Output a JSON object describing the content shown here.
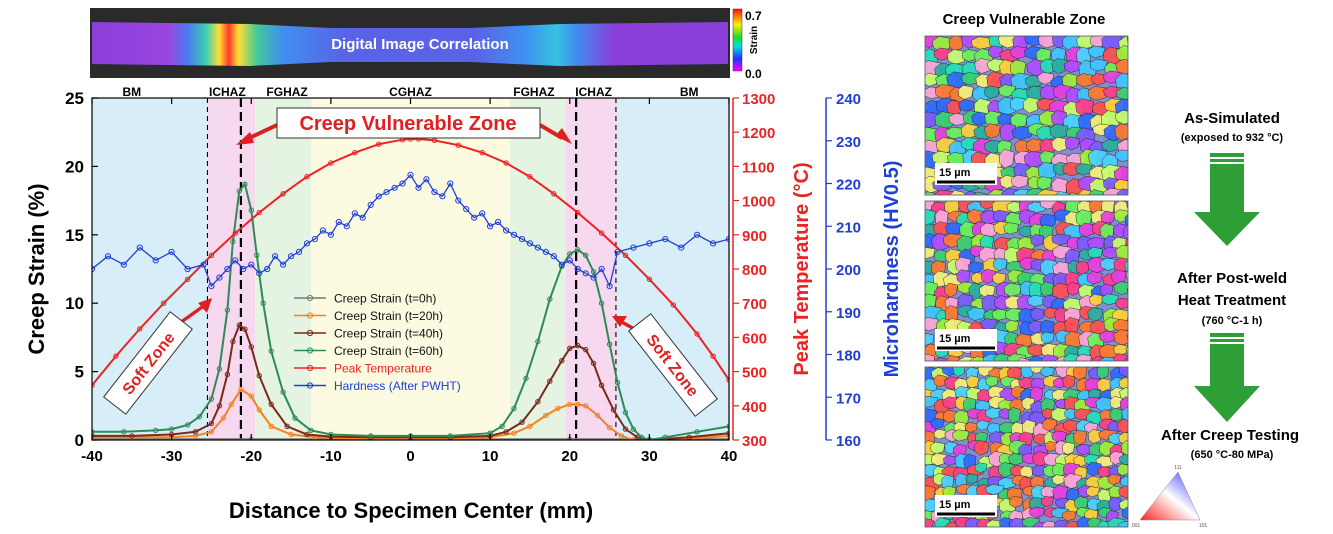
{
  "dic": {
    "label": "Digital Image Correlation",
    "colorbar_title": "Strain",
    "colorbar_max": "0.7",
    "colorbar_min": "0.0"
  },
  "zones": [
    {
      "name": "BM",
      "x": -35
    },
    {
      "name": "ICHAZ",
      "x": -23
    },
    {
      "name": "FGHAZ",
      "x": -15.5
    },
    {
      "name": "CGHAZ",
      "x": 0
    },
    {
      "name": "FGHAZ",
      "x": 15.5
    },
    {
      "name": "ICHAZ",
      "x": 23
    },
    {
      "name": "BM",
      "x": 35
    }
  ],
  "zone_bands": [
    {
      "x0": -40,
      "x1": -25.5,
      "color": "#d7eef8"
    },
    {
      "x0": -25.5,
      "x1": -19.5,
      "color": "#f6d9ef"
    },
    {
      "x0": -19.5,
      "x1": -12.5,
      "color": "#e4f3e2"
    },
    {
      "x0": -12.5,
      "x1": 12.5,
      "color": "#fcfbe1"
    },
    {
      "x0": 12.5,
      "x1": 19.5,
      "color": "#e4f3e2"
    },
    {
      "x0": 19.5,
      "x1": 26,
      "color": "#f6d9ef"
    },
    {
      "x0": 26,
      "x1": 40,
      "color": "#d7eef8"
    }
  ],
  "annotations": {
    "creep_vulnerable_zone": "Creep Vulnerable Zone",
    "soft_zone_left": "Soft Zone",
    "soft_zone_right": "Soft Zone"
  },
  "chart_data": {
    "type": "line",
    "xlabel": "Distance to Specimen Center (mm)",
    "ylabel": "Creep Strain (%)",
    "y2label": "Peak Temperature (°C)",
    "y3label": "Microhardness (HV0.5)",
    "xlim": [
      -40,
      40
    ],
    "ylim": [
      0,
      25
    ],
    "y2lim": [
      300,
      1300
    ],
    "y3lim": [
      160,
      240
    ],
    "xticks": [
      -40,
      -30,
      -20,
      -10,
      0,
      10,
      20,
      30,
      40
    ],
    "yticks": [
      0,
      5,
      10,
      15,
      20,
      25
    ],
    "y2ticks": [
      300,
      400,
      500,
      600,
      700,
      800,
      900,
      1000,
      1100,
      1200,
      1300
    ],
    "y3ticks": [
      160,
      170,
      180,
      190,
      200,
      210,
      220,
      230,
      240
    ],
    "legend_position": "center-left",
    "dashed_lines_x": [
      -25.5,
      -21.3,
      20.8,
      25.8
    ],
    "series": [
      {
        "name": "Creep Strain (t=0h)",
        "axis": "left",
        "color": "#777777",
        "x": [
          -40,
          -30,
          -20,
          -10,
          0,
          10,
          20,
          30,
          40
        ],
        "y": [
          0.05,
          0.05,
          0.05,
          0.05,
          0.05,
          0.05,
          0.05,
          0.05,
          0.05
        ]
      },
      {
        "name": "Creep Strain (t=20h)",
        "axis": "left",
        "color": "#f58220",
        "x": [
          -40,
          -35,
          -30,
          -27,
          -25,
          -23.5,
          -22.5,
          -21.3,
          -20,
          -19,
          -17.5,
          -15,
          -12,
          -10,
          -5,
          0,
          5,
          10,
          13,
          15,
          17,
          18.5,
          20,
          21,
          22,
          23.5,
          25,
          26.5,
          28,
          30,
          35,
          40
        ],
        "y": [
          0.2,
          0.2,
          0.2,
          0.3,
          0.6,
          1.6,
          2.6,
          3.7,
          3.2,
          2.2,
          1.0,
          0.4,
          0.2,
          0.15,
          0.1,
          0.1,
          0.1,
          0.2,
          0.5,
          1.0,
          1.8,
          2.3,
          2.6,
          2.6,
          2.5,
          1.8,
          0.9,
          0.3,
          0.0,
          -0.1,
          0.1,
          0.3
        ]
      },
      {
        "name": "Creep Strain (t=40h)",
        "axis": "left",
        "color": "#7b2a1a",
        "x": [
          -40,
          -35,
          -30,
          -27,
          -25,
          -24,
          -23,
          -22.3,
          -21.5,
          -20.8,
          -20,
          -19,
          -17.5,
          -15.5,
          -13,
          -10,
          -5,
          0,
          5,
          10,
          12,
          14,
          16,
          17.5,
          19,
          20,
          21,
          22,
          23,
          24,
          25.5,
          27,
          28.5,
          30,
          35,
          40
        ],
        "y": [
          0.3,
          0.3,
          0.4,
          0.6,
          1.2,
          2.5,
          4.8,
          7.2,
          8.4,
          8.1,
          6.8,
          4.7,
          2.6,
          1.0,
          0.4,
          0.25,
          0.2,
          0.2,
          0.2,
          0.3,
          0.6,
          1.3,
          2.8,
          4.3,
          5.8,
          6.7,
          6.9,
          6.6,
          5.6,
          4.0,
          2.2,
          0.8,
          0.2,
          0.0,
          0.2,
          0.5
        ]
      },
      {
        "name": "Creep Strain (t=60h)",
        "axis": "left",
        "color": "#2e8b57",
        "x": [
          -40,
          -36,
          -32,
          -30,
          -28,
          -26.5,
          -25,
          -24,
          -23,
          -22.3,
          -21.5,
          -20.8,
          -20,
          -19.3,
          -18.5,
          -17.5,
          -16,
          -14.5,
          -12.5,
          -10,
          -5,
          0,
          5,
          10,
          11.5,
          13,
          14.5,
          16,
          17.5,
          19,
          20,
          21,
          22,
          23,
          24,
          25,
          26,
          27,
          28,
          29,
          30,
          32,
          36,
          40
        ],
        "y": [
          0.6,
          0.6,
          0.7,
          0.8,
          1.1,
          1.7,
          3.0,
          5.2,
          9.5,
          14.5,
          18.2,
          18.7,
          16.8,
          13.5,
          10.0,
          6.5,
          3.5,
          1.6,
          0.7,
          0.4,
          0.3,
          0.3,
          0.3,
          0.5,
          1.0,
          2.3,
          4.5,
          7.2,
          10.3,
          12.7,
          13.6,
          13.9,
          13.5,
          12.3,
          10.0,
          7.0,
          4.2,
          2.0,
          0.8,
          0.2,
          0.0,
          0.2,
          0.6,
          1.0
        ]
      },
      {
        "name": "Peak Temperature",
        "axis": "right1",
        "color": "#ee2222",
        "x": [
          -40,
          -37,
          -34,
          -31,
          -28,
          -25,
          -22,
          -19,
          -16,
          -13,
          -10,
          -7,
          -4,
          -1,
          0,
          1,
          3,
          6,
          9,
          12,
          15,
          18,
          21,
          24,
          27,
          30,
          33,
          36,
          38,
          40
        ],
        "y": [
          460,
          545,
          625,
          700,
          770,
          840,
          905,
          965,
          1020,
          1070,
          1110,
          1140,
          1165,
          1178,
          1180,
          1180,
          1176,
          1162,
          1140,
          1110,
          1070,
          1020,
          965,
          905,
          840,
          770,
          695,
          610,
          545,
          475
        ]
      },
      {
        "name": "Hardness (After PWHT)",
        "axis": "right2",
        "color": "#1f3fd6",
        "x": [
          -40,
          -38,
          -36,
          -34,
          -32,
          -30,
          -28,
          -26,
          -25,
          -24,
          -23,
          -22,
          -21,
          -20,
          -19,
          -18,
          -17,
          -16,
          -15,
          -14,
          -13,
          -12,
          -11,
          -10,
          -9,
          -8,
          -7,
          -6,
          -5,
          -4,
          -3,
          -2,
          -1,
          0,
          1,
          2,
          3,
          4,
          5,
          6,
          7,
          8,
          9,
          10,
          11,
          12,
          13,
          14,
          15,
          16,
          17,
          18,
          19,
          20,
          21,
          22,
          23,
          24,
          25,
          26,
          28,
          30,
          32,
          34,
          36,
          38,
          40
        ],
        "y": [
          200,
          203,
          201,
          205,
          202,
          204,
          200,
          201,
          196,
          198,
          200,
          202,
          200,
          201,
          199,
          200,
          203,
          201,
          203,
          204,
          206,
          207,
          209,
          208,
          211,
          210,
          213,
          212,
          215,
          217,
          218,
          219,
          220,
          222,
          219,
          221,
          218,
          217,
          220,
          216,
          214,
          212,
          213,
          210,
          211,
          209,
          208,
          207,
          206,
          205,
          204,
          203,
          201,
          202,
          200,
          199,
          198,
          200,
          196,
          204,
          205,
          206,
          207,
          205,
          208,
          206,
          207
        ]
      }
    ]
  },
  "ebsd": {
    "title": "Creep Vulnerable Zone",
    "panels": [
      {
        "scale": "15 µm",
        "stage": "As-Simulated",
        "stage2": "",
        "detail": "(exposed to 932 °C)"
      },
      {
        "scale": "15 µm",
        "stage": "After Post-weld",
        "stage2": "Heat Treatment",
        "detail": "(760 °C-1 h)"
      },
      {
        "scale": "15 µm",
        "stage": "After Creep Testing",
        "stage2": "",
        "detail": "(650 °C-80 MPa)"
      }
    ],
    "ipf_labels": {
      "top": "111",
      "left": "001",
      "right": "101"
    }
  }
}
